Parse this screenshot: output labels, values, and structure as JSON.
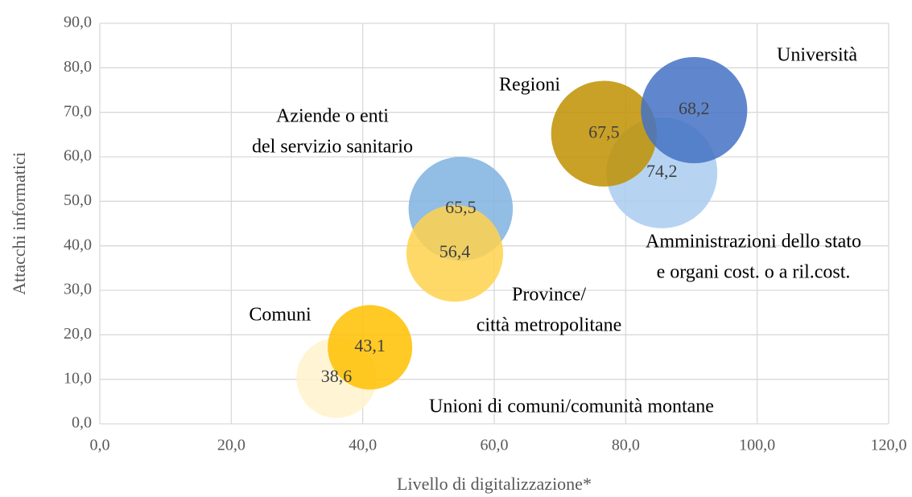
{
  "chart_data": {
    "type": "bubble",
    "x_label": "Livello di digitalizzazione*",
    "y_label": "Attacchi informatici",
    "xlim": [
      0,
      120
    ],
    "xticks": [
      {
        "value": 0,
        "label": "0,0"
      },
      {
        "value": 20,
        "label": "20,0"
      },
      {
        "value": 40,
        "label": "40,0"
      },
      {
        "value": 60,
        "label": "60,0"
      },
      {
        "value": 80,
        "label": "80,0"
      },
      {
        "value": 100,
        "label": "100,0"
      },
      {
        "value": 120,
        "label": "120,0"
      }
    ],
    "ylim": [
      0,
      90
    ],
    "yticks": [
      {
        "value": 0,
        "label": "0,0"
      },
      {
        "value": 10,
        "label": "10,0"
      },
      {
        "value": 20,
        "label": "20,0"
      },
      {
        "value": 30,
        "label": "30,0"
      },
      {
        "value": 40,
        "label": "40,0"
      },
      {
        "value": 50,
        "label": "50,0"
      },
      {
        "value": 60,
        "label": "60,0"
      },
      {
        "value": 70,
        "label": "70,0"
      },
      {
        "value": 80,
        "label": "80,0"
      },
      {
        "value": 90,
        "label": "90,0"
      }
    ],
    "grid": true,
    "points": [
      {
        "label": [
          "Unioni di comuni/comunità montane"
        ],
        "x": 36.0,
        "y": 10.3,
        "size": 38.6,
        "size_label": "38,6",
        "color": "#fff2cc"
      },
      {
        "label": [
          "Comuni"
        ],
        "x": 41.1,
        "y": 17.2,
        "size": 43.1,
        "size_label": "43,1",
        "color": "#ffc000"
      },
      {
        "label": [
          "Aziende o enti",
          "del servizio sanitario"
        ],
        "x": 54.9,
        "y": 48.3,
        "size": 65.5,
        "size_label": "65,5",
        "color": "#7fb2e0"
      },
      {
        "label": [
          "Province/",
          "città metropolitane"
        ],
        "x": 54.0,
        "y": 38.3,
        "size": 56.4,
        "size_label": "56,4",
        "color": "#ffd24d"
      },
      {
        "label": [
          "Amministrazioni dello stato",
          "e organi cost. o a ril.cost."
        ],
        "x": 85.5,
        "y": 56.4,
        "size": 74.2,
        "size_label": "74,2",
        "color": "#a9cdee"
      },
      {
        "label": [
          "Regioni"
        ],
        "x": 76.7,
        "y": 65.2,
        "size": 67.5,
        "size_label": "67,5",
        "color": "#bf9000"
      },
      {
        "label": [
          "Università"
        ],
        "x": 90.4,
        "y": 70.5,
        "size": 68.2,
        "size_label": "68,2",
        "color": "#4472c4"
      }
    ]
  }
}
